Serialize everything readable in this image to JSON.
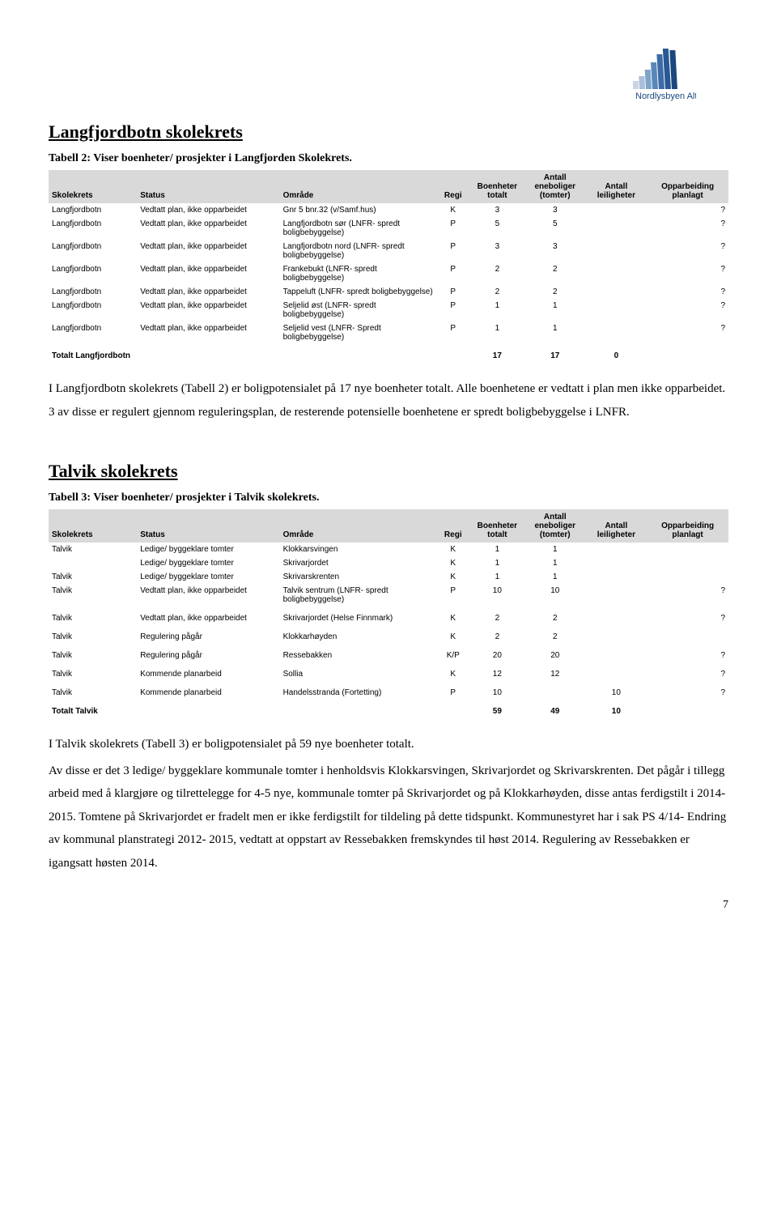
{
  "logo": {
    "brand": "Nordlysbyen Alta",
    "bar_colors": [
      "#c9d5e4",
      "#a9bfd9",
      "#7fa3c9",
      "#5a87b9",
      "#3b6ca8",
      "#285994",
      "#1a477e"
    ]
  },
  "page_number": "7",
  "columns": [
    {
      "key": "skolekrets",
      "label": "Skolekrets"
    },
    {
      "key": "status",
      "label": "Status"
    },
    {
      "key": "omrade",
      "label": "Område"
    },
    {
      "key": "regi",
      "label": "Regi"
    },
    {
      "key": "boenheter",
      "label": "Boenheter totalt"
    },
    {
      "key": "eneboliger",
      "label": "Antall eneboliger (tomter)"
    },
    {
      "key": "leiligheter",
      "label": "Antall leiligheter"
    },
    {
      "key": "opparbeiding",
      "label": "Opparbeiding planlagt"
    }
  ],
  "section1": {
    "title": "Langfjordbotn skolekrets",
    "caption": "Tabell 2: Viser boenheter/ prosjekter i Langfjorden Skolekrets.",
    "rows": [
      {
        "skolekrets": "Langfjordbotn",
        "status": "Vedtatt plan, ikke opparbeidet",
        "omrade": "Gnr 5 bnr.32 (v/Samf.hus)",
        "regi": "K",
        "boenheter": "3",
        "eneboliger": "3",
        "leiligheter": "",
        "opparbeiding": "?"
      },
      {
        "skolekrets": "Langfjordbotn",
        "status": "Vedtatt plan, ikke opparbeidet",
        "omrade": "Langfjordbotn sør (LNFR- spredt boligbebyggelse)",
        "regi": "P",
        "boenheter": "5",
        "eneboliger": "5",
        "leiligheter": "",
        "opparbeiding": "?"
      },
      {
        "skolekrets": "Langfjordbotn",
        "status": "Vedtatt plan, ikke opparbeidet",
        "omrade": "Langfjordbotn nord (LNFR- spredt boligbebyggelse)",
        "regi": "P",
        "boenheter": "3",
        "eneboliger": "3",
        "leiligheter": "",
        "opparbeiding": "?"
      },
      {
        "skolekrets": "Langfjordbotn",
        "status": "Vedtatt plan, ikke opparbeidet",
        "omrade": "Frankebukt (LNFR- spredt boligbebyggelse)",
        "regi": "P",
        "boenheter": "2",
        "eneboliger": "2",
        "leiligheter": "",
        "opparbeiding": "?"
      },
      {
        "skolekrets": "Langfjordbotn",
        "status": "Vedtatt plan, ikke opparbeidet",
        "omrade": "Tappeluft (LNFR- spredt boligbebyggelse)",
        "regi": "P",
        "boenheter": "2",
        "eneboliger": "2",
        "leiligheter": "",
        "opparbeiding": "?"
      },
      {
        "skolekrets": "Langfjordbotn",
        "status": "Vedtatt plan, ikke opparbeidet",
        "omrade": "Seljelid øst (LNFR- spredt boligbebyggelse)",
        "regi": "P",
        "boenheter": "1",
        "eneboliger": "1",
        "leiligheter": "",
        "opparbeiding": "?"
      },
      {
        "skolekrets": "Langfjordbotn",
        "status": "Vedtatt plan, ikke opparbeidet",
        "omrade": "Seljelid vest (LNFR- Spredt boligbebyggelse)",
        "regi": "P",
        "boenheter": "1",
        "eneboliger": "1",
        "leiligheter": "",
        "opparbeiding": "?"
      }
    ],
    "total": {
      "label": "Totalt Langfjordbotn",
      "boenheter": "17",
      "eneboliger": "17",
      "leiligheter": "0"
    },
    "paragraph": "I Langfjordbotn skolekrets (Tabell 2) er boligpotensialet på 17 nye boenheter totalt. Alle boenhetene er vedtatt i plan men ikke opparbeidet. 3 av disse er regulert gjennom reguleringsplan, de resterende potensielle boenhetene er spredt boligbebyggelse i LNFR."
  },
  "section2": {
    "title": "Talvik skolekrets",
    "caption": "Tabell 3: Viser boenheter/ prosjekter i Talvik skolekrets.",
    "rows": [
      {
        "skolekrets": "Talvik",
        "status": "Ledige/ byggeklare tomter",
        "omrade": "Klokkarsvingen",
        "regi": "K",
        "boenheter": "1",
        "eneboliger": "1",
        "leiligheter": "",
        "opparbeiding": ""
      },
      {
        "skolekrets": "",
        "status": "Ledige/ byggeklare tomter",
        "omrade": "Skrivarjordet",
        "regi": "K",
        "boenheter": "1",
        "eneboliger": "1",
        "leiligheter": "",
        "opparbeiding": ""
      },
      {
        "skolekrets": "Talvik",
        "status": "Ledige/ byggeklare tomter",
        "omrade": "Skrivarskrenten",
        "regi": "K",
        "boenheter": "1",
        "eneboliger": "1",
        "leiligheter": "",
        "opparbeiding": ""
      },
      {
        "skolekrets": "Talvik",
        "status": "Vedtatt plan, ikke opparbeidet",
        "omrade": "Talvik sentrum (LNFR- spredt boligbebyggelse)",
        "regi": "P",
        "boenheter": "10",
        "eneboliger": "10",
        "leiligheter": "",
        "opparbeiding": "?",
        "gap": false
      },
      {
        "skolekrets": "Talvik",
        "status": "Vedtatt plan, ikke opparbeidet",
        "omrade": "Skrivarjordet (Helse Finnmark)",
        "regi": "K",
        "boenheter": "2",
        "eneboliger": "2",
        "leiligheter": "",
        "opparbeiding": "?",
        "gap": true
      },
      {
        "skolekrets": "Talvik",
        "status": "Regulering pågår",
        "omrade": "Klokkarhøyden",
        "regi": "K",
        "boenheter": "2",
        "eneboliger": "2",
        "leiligheter": "",
        "opparbeiding": "",
        "gap": true
      },
      {
        "skolekrets": "Talvik",
        "status": "Regulering pågår",
        "omrade": "Ressebakken",
        "regi": "K/P",
        "boenheter": "20",
        "eneboliger": "20",
        "leiligheter": "",
        "opparbeiding": "?",
        "gap": true
      },
      {
        "skolekrets": "Talvik",
        "status": "Kommende planarbeid",
        "omrade": "Sollia",
        "regi": "K",
        "boenheter": "12",
        "eneboliger": "12",
        "leiligheter": "",
        "opparbeiding": "?",
        "gap": true
      },
      {
        "skolekrets": "Talvik",
        "status": "Kommende planarbeid",
        "omrade": "Handelsstranda (Fortetting)",
        "regi": "P",
        "boenheter": "10",
        "eneboliger": "",
        "leiligheter": "10",
        "opparbeiding": "?",
        "gap": true
      }
    ],
    "total": {
      "label": "Totalt Talvik",
      "boenheter": "59",
      "eneboliger": "49",
      "leiligheter": "10"
    },
    "paragraph1": "I Talvik skolekrets (Tabell 3) er boligpotensialet på 59 nye boenheter totalt.",
    "paragraph2": "Av disse er det 3 ledige/ byggeklare kommunale tomter i henholdsvis Klokkarsvingen, Skrivarjordet og Skrivarskrenten. Det pågår i tillegg arbeid med å klargjøre og tilrettelegge for 4-5 nye, kommunale tomter på Skrivarjordet og på Klokkarhøyden, disse antas ferdigstilt i 2014-2015. Tomtene på Skrivarjordet er fradelt men er ikke ferdigstilt for tildeling på dette tidspunkt. Kommunestyret har i sak PS 4/14- Endring av kommunal planstrategi 2012- 2015, vedtatt at oppstart av Ressebakken fremskyndes til høst 2014. Regulering av Ressebakken er igangsatt høsten 2014."
  }
}
